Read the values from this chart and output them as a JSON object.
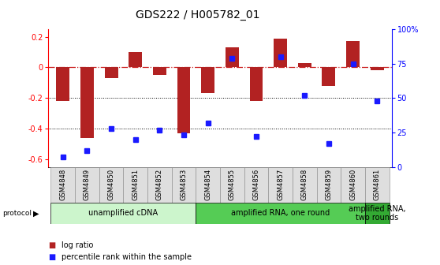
{
  "title": "GDS222 / H005782_01",
  "samples": [
    "GSM4848",
    "GSM4849",
    "GSM4850",
    "GSM4851",
    "GSM4852",
    "GSM4853",
    "GSM4854",
    "GSM4855",
    "GSM4856",
    "GSM4857",
    "GSM4858",
    "GSM4859",
    "GSM4860",
    "GSM4861"
  ],
  "log_ratio": [
    -0.22,
    -0.46,
    -0.07,
    0.1,
    -0.05,
    -0.43,
    -0.17,
    0.13,
    -0.22,
    0.19,
    0.03,
    -0.12,
    0.17,
    -0.02
  ],
  "percentile": [
    7,
    12,
    28,
    20,
    27,
    23,
    32,
    79,
    22,
    80,
    52,
    17,
    75,
    48
  ],
  "bar_color": "#b22222",
  "dot_color": "#1a1aff",
  "ylim_left": [
    -0.65,
    0.25
  ],
  "ylim_right": [
    0,
    100
  ],
  "left_ticks": [
    0.2,
    0.0,
    -0.2,
    -0.4,
    -0.6
  ],
  "left_tick_labels": [
    "0.2",
    "0",
    "-0.2",
    "-0.4",
    "-0.6"
  ],
  "right_ticks": [
    0,
    25,
    50,
    75,
    100
  ],
  "right_tick_labels": [
    "0",
    "25",
    "50",
    "75",
    "100%"
  ],
  "dotted_lines": [
    -0.2,
    -0.4
  ],
  "dashed_line_y": 0.0,
  "protocol_groups": [
    {
      "label": "unamplified cDNA",
      "start": 0,
      "end": 5,
      "color": "#ccf5cc"
    },
    {
      "label": "amplified RNA, one round",
      "start": 6,
      "end": 12,
      "color": "#55cc55"
    },
    {
      "label": "amplified RNA,\ntwo rounds",
      "start": 13,
      "end": 13,
      "color": "#33aa33"
    }
  ],
  "legend_items": [
    {
      "label": "log ratio",
      "color": "#b22222"
    },
    {
      "label": "percentile rank within the sample",
      "color": "#1a1aff"
    }
  ],
  "bar_width": 0.55,
  "background_color": "#ffffff",
  "dashed_line_color": "#cc2222",
  "title_fontsize": 10,
  "tick_fontsize": 7,
  "sample_fontsize": 6,
  "proto_fontsize": 7,
  "legend_fontsize": 7
}
